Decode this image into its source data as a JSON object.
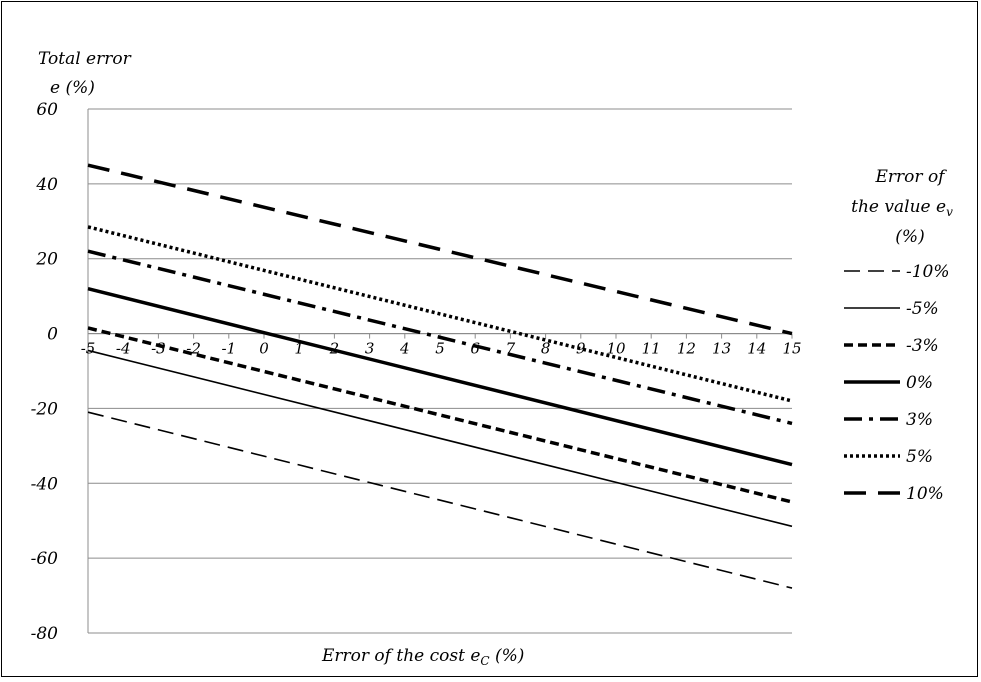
{
  "chart_data": {
    "type": "line",
    "ylabel_line1": "Total error",
    "ylabel_line2": "e (%)",
    "xlabel": "Error of  the cost e",
    "xlabel_sub": "C",
    "xlabel_suffix": " (%)",
    "legend_title_line1": "Error of",
    "legend_title_line2": "the value e",
    "legend_title_sub": "v",
    "legend_title_line3": "(%)",
    "legend_position": "right",
    "grid": "horizontal",
    "xlim": [
      -5,
      15
    ],
    "ylim": [
      -80,
      60
    ],
    "x_ticks": [
      "-5",
      "-4",
      "-3",
      "-2",
      "-1",
      "0",
      "1",
      "2",
      "3",
      "4",
      "5",
      "6",
      "7",
      "8",
      "9",
      "10",
      "11",
      "12",
      "13",
      "14",
      "15"
    ],
    "y_ticks": [
      "60",
      "40",
      "20",
      "0",
      "-20",
      "-40",
      "-60",
      "-80"
    ],
    "y_tick_values": [
      60,
      40,
      20,
      0,
      -20,
      -40,
      -60,
      -80
    ],
    "x": [
      -5,
      15
    ],
    "series": [
      {
        "name": "-10%",
        "values": [
          -21,
          -68
        ],
        "dash": "16,8",
        "width": 1.6
      },
      {
        "name": "-5%",
        "values": [
          -4.5,
          -51.5
        ],
        "dash": "",
        "width": 1.6
      },
      {
        "name": "-3%",
        "values": [
          1.5,
          -45
        ],
        "dash": "9,5",
        "width": 3.5
      },
      {
        "name": "0%",
        "values": [
          12,
          -35
        ],
        "dash": "",
        "width": 3.5
      },
      {
        "name": "3%",
        "values": [
          22,
          -24
        ],
        "dash": "18,7,4,7",
        "width": 3.5
      },
      {
        "name": "5%",
        "values": [
          28.5,
          -18
        ],
        "dash": "3,3",
        "width": 3.5
      },
      {
        "name": "10%",
        "values": [
          45,
          0
        ],
        "dash": "22,12",
        "width": 3.5
      }
    ],
    "legend_order": [
      "-10%",
      "-5%",
      "-3%",
      "0%",
      "3%",
      "5%",
      "10%"
    ]
  }
}
